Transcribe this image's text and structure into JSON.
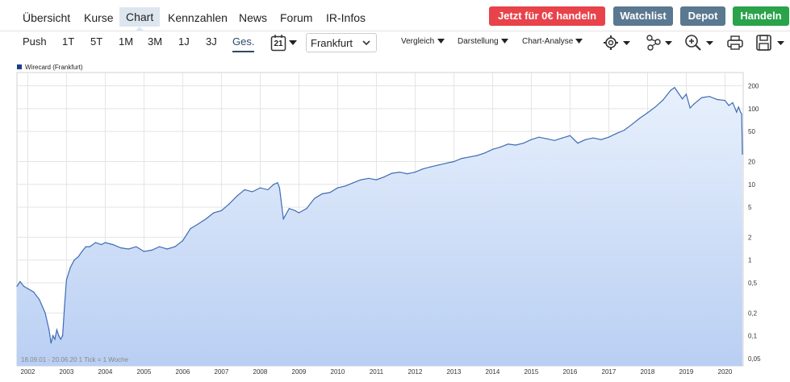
{
  "nav": {
    "tabs": [
      "Übersicht",
      "Kurse",
      "Chart",
      "Kennzahlen",
      "News",
      "Forum",
      "IR-Infos"
    ],
    "active_index": 2
  },
  "actions": {
    "trade_label": "Jetzt für 0€ handeln",
    "watchlist_label": "Watchlist",
    "depot_label": "Depot",
    "handeln_label": "Handeln"
  },
  "colors": {
    "trade": "#e8424a",
    "watchlist": "#5a7890",
    "depot": "#5a7890",
    "handeln": "#2aa34a",
    "line": "#3e6cb4",
    "fill_top": "#e8f0fc",
    "fill_bottom": "#b9cff3"
  },
  "toolbar": {
    "periods": [
      "Push",
      "1T",
      "5T",
      "1M",
      "3M",
      "1J",
      "3J",
      "Ges."
    ],
    "active_period": "Ges.",
    "calendar_day": "21",
    "exchange": "Frankfurt",
    "menus": [
      "Vergleich",
      "Darstellung",
      "Chart-Analyse"
    ]
  },
  "icons": [
    "settings-icon",
    "indicator-icon",
    "zoom-icon",
    "print-icon",
    "save-icon"
  ],
  "chart_data": {
    "type": "area",
    "scale": "log",
    "legend": "Wirecard (Frankfurt)",
    "legend_placement": "top-left",
    "footnote": "18.09.01 - 20.06.20   1 Tick = 1 Woche",
    "ylabel": "",
    "xlabel": "",
    "y_ticks": [
      0.05,
      0.1,
      0.2,
      0.5,
      1,
      2,
      5,
      10,
      20,
      50,
      100,
      200
    ],
    "y_tick_labels": [
      "0,05",
      "0,1",
      "0,2",
      "0,5",
      "1",
      "2",
      "5",
      "10",
      "20",
      "50",
      "100",
      "200"
    ],
    "x_ticks": [
      "2002",
      "2003",
      "2004",
      "2005",
      "2006",
      "2007",
      "2008",
      "2009",
      "2010",
      "2011",
      "2012",
      "2013",
      "2014",
      "2015",
      "2016",
      "2017",
      "2018",
      "2019",
      "2020"
    ],
    "ylim": [
      0.04,
      300
    ],
    "xlim": [
      2001.72,
      2020.47
    ],
    "grid": true,
    "series": [
      {
        "name": "Wirecard (Frankfurt)",
        "x": [
          2001.72,
          2001.8,
          2001.9,
          2002.0,
          2002.15,
          2002.3,
          2002.45,
          2002.55,
          2002.6,
          2002.65,
          2002.7,
          2002.75,
          2002.8,
          2002.85,
          2002.9,
          2002.95,
          2003.0,
          2003.1,
          2003.2,
          2003.3,
          2003.4,
          2003.5,
          2003.6,
          2003.75,
          2003.9,
          2004.0,
          2004.2,
          2004.4,
          2004.6,
          2004.8,
          2005.0,
          2005.2,
          2005.4,
          2005.6,
          2005.8,
          2006.0,
          2006.2,
          2006.4,
          2006.6,
          2006.8,
          2007.0,
          2007.2,
          2007.4,
          2007.6,
          2007.8,
          2008.0,
          2008.2,
          2008.35,
          2008.45,
          2008.5,
          2008.6,
          2008.75,
          2008.9,
          2009.0,
          2009.2,
          2009.4,
          2009.6,
          2009.8,
          2010.0,
          2010.2,
          2010.4,
          2010.6,
          2010.8,
          2011.0,
          2011.2,
          2011.4,
          2011.6,
          2011.8,
          2012.0,
          2012.2,
          2012.4,
          2012.6,
          2012.8,
          2013.0,
          2013.2,
          2013.4,
          2013.6,
          2013.8,
          2014.0,
          2014.2,
          2014.4,
          2014.6,
          2014.8,
          2015.0,
          2015.2,
          2015.4,
          2015.6,
          2015.8,
          2016.0,
          2016.2,
          2016.4,
          2016.6,
          2016.8,
          2017.0,
          2017.2,
          2017.4,
          2017.6,
          2017.8,
          2018.0,
          2018.2,
          2018.4,
          2018.6,
          2018.7,
          2018.8,
          2018.9,
          2019.0,
          2019.1,
          2019.2,
          2019.4,
          2019.6,
          2019.8,
          2020.0,
          2020.1,
          2020.2,
          2020.3,
          2020.35,
          2020.4,
          2020.43,
          2020.45
        ],
        "values": [
          0.45,
          0.52,
          0.45,
          0.42,
          0.38,
          0.3,
          0.2,
          0.12,
          0.08,
          0.1,
          0.09,
          0.12,
          0.1,
          0.09,
          0.1,
          0.25,
          0.55,
          0.8,
          1.0,
          1.1,
          1.3,
          1.5,
          1.5,
          1.7,
          1.6,
          1.7,
          1.6,
          1.45,
          1.4,
          1.5,
          1.3,
          1.35,
          1.5,
          1.4,
          1.5,
          1.8,
          2.6,
          3.0,
          3.5,
          4.2,
          4.5,
          5.5,
          7.0,
          8.5,
          8.0,
          9.0,
          8.5,
          10.0,
          10.5,
          9.0,
          3.5,
          4.8,
          4.5,
          4.2,
          4.8,
          6.5,
          7.5,
          7.8,
          9.0,
          9.5,
          10.5,
          11.5,
          12.0,
          11.5,
          12.5,
          14.0,
          14.5,
          13.8,
          14.5,
          16.0,
          17.0,
          18.0,
          19.0,
          20.0,
          22.0,
          23.0,
          24.0,
          26.0,
          29.0,
          31.0,
          34.0,
          33.0,
          35.0,
          39.0,
          42.0,
          40.0,
          38.0,
          41.0,
          44.0,
          35.0,
          39.0,
          41.0,
          39.0,
          42.0,
          47.0,
          52.0,
          62.0,
          75.0,
          88.0,
          105.0,
          130.0,
          175.0,
          190.0,
          160.0,
          135.0,
          155.0,
          102.0,
          115.0,
          140.0,
          145.0,
          132.0,
          128.0,
          110.0,
          120.0,
          90.0,
          105.0,
          90.0,
          85.0,
          25.0
        ]
      }
    ]
  }
}
